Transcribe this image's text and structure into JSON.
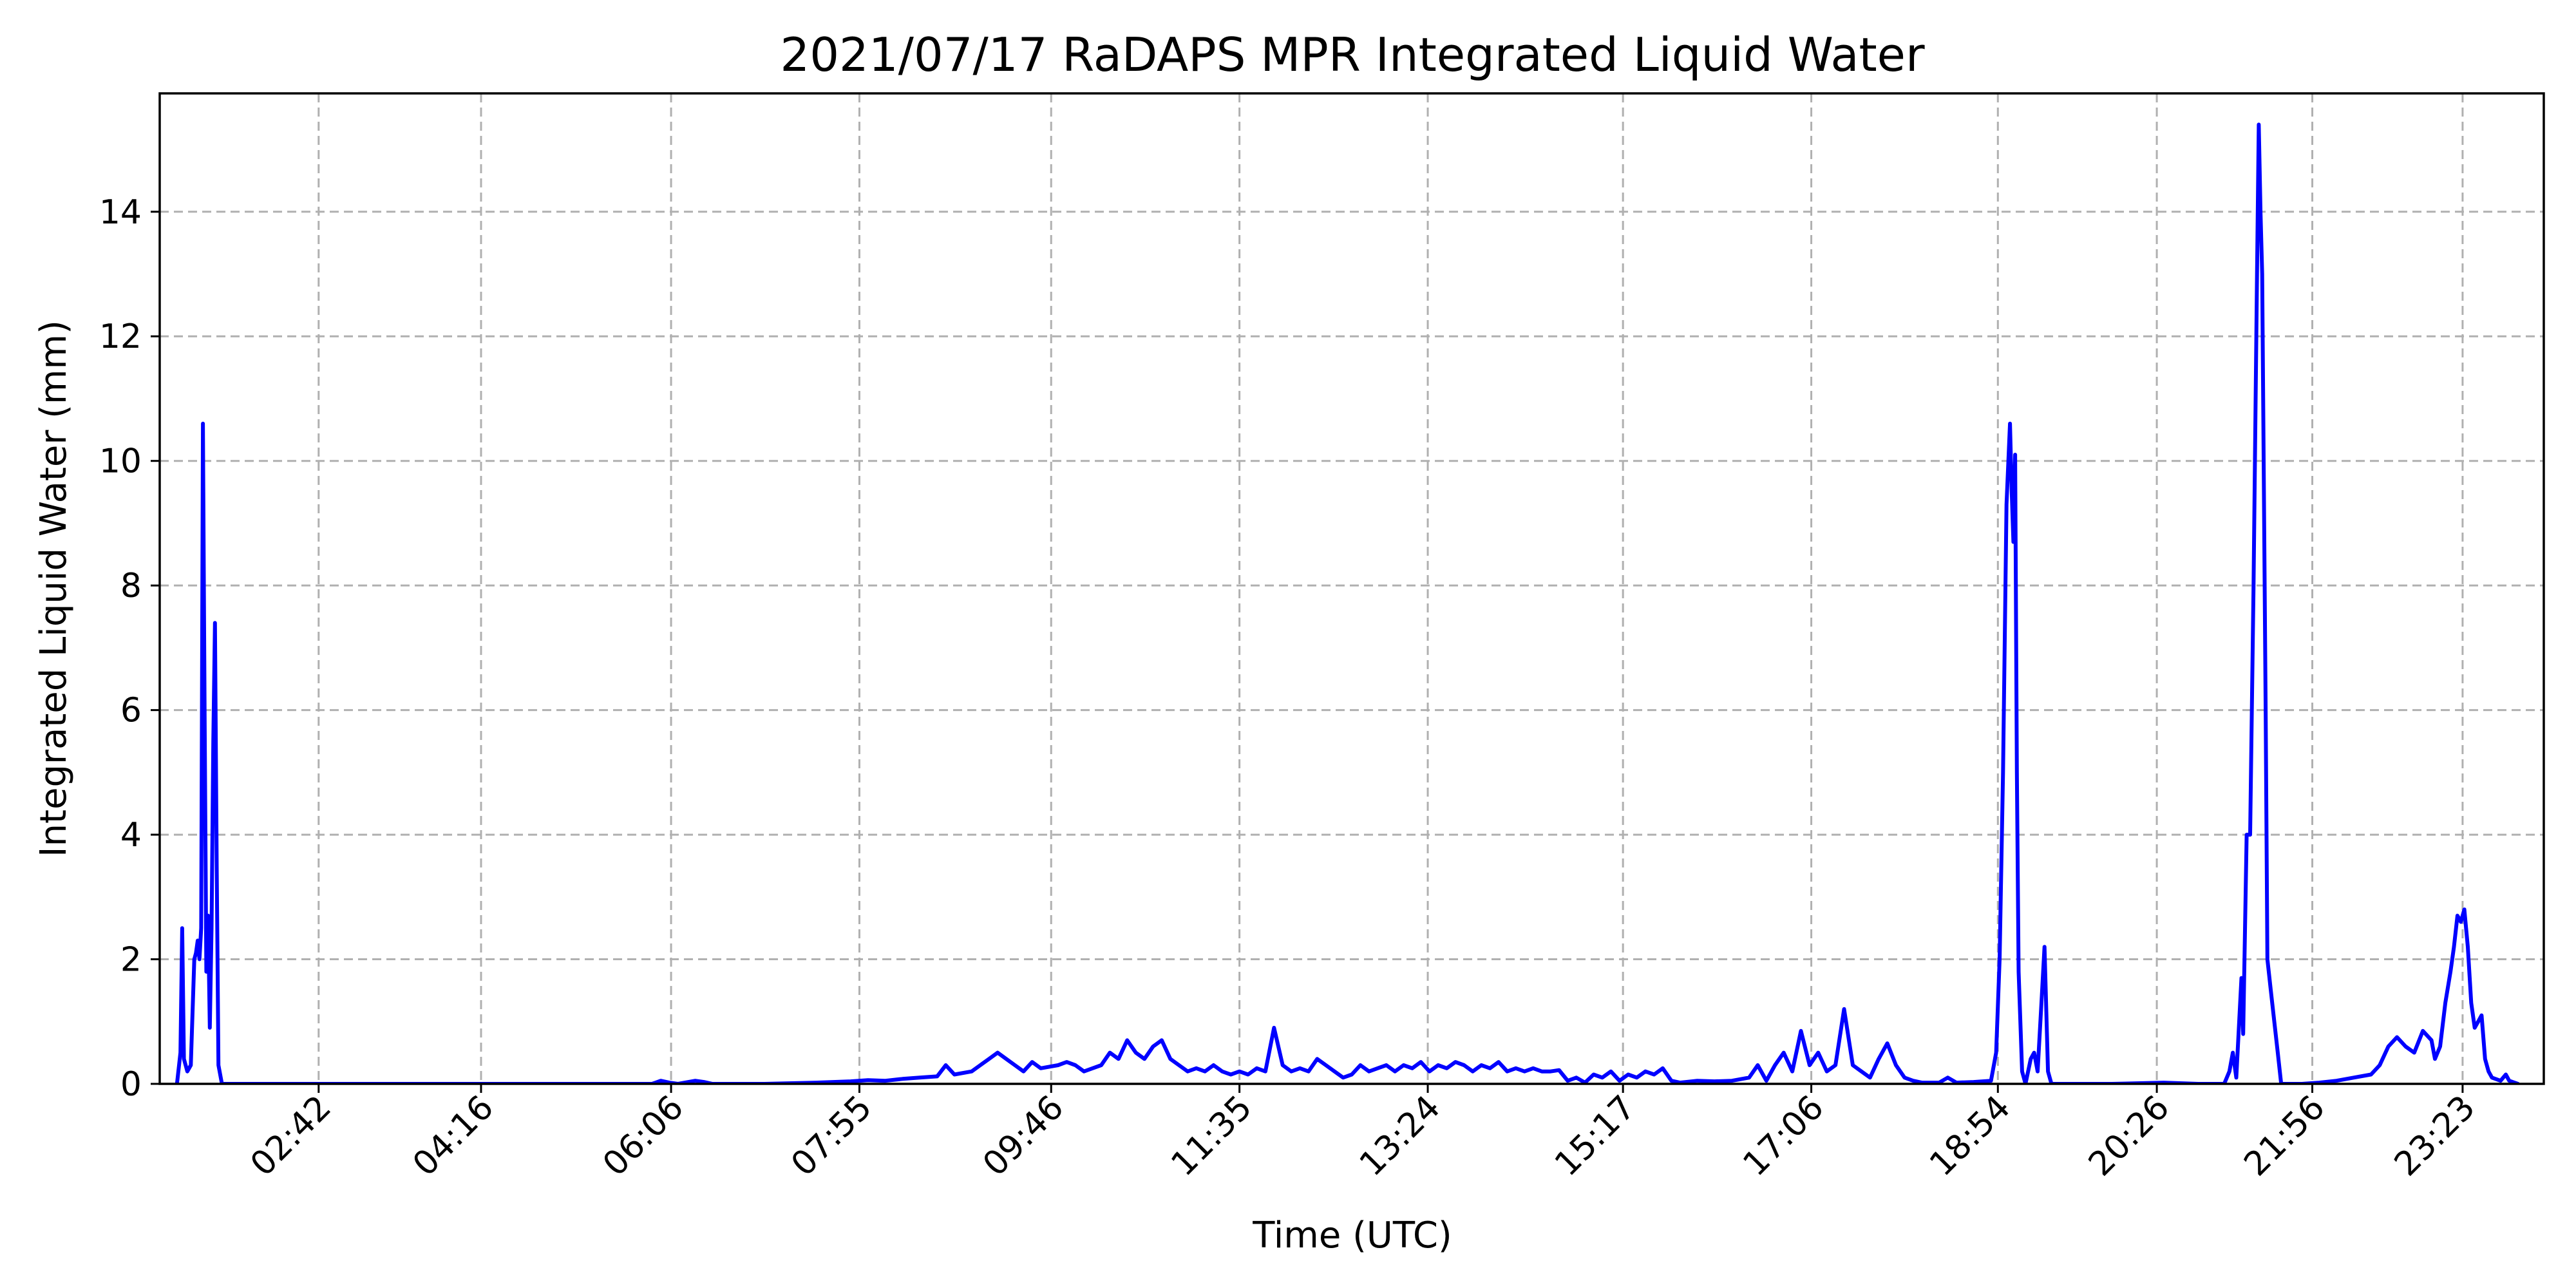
{
  "chart_data": {
    "type": "line",
    "title": "2021/07/17 RaDAPS MPR Integrated Liquid Water",
    "xlabel": "Time (UTC)",
    "ylabel": "Integrated Liquid Water (mm)",
    "x_unit": "minutes since 00:00 UTC",
    "xlim": [
      70,
      1450
    ],
    "ylim": [
      0,
      15.9
    ],
    "yticks": [
      0,
      2,
      4,
      6,
      8,
      10,
      12,
      14
    ],
    "xticks": [
      {
        "value": 162,
        "label": "02:42"
      },
      {
        "value": 256,
        "label": "04:16"
      },
      {
        "value": 366,
        "label": "06:06"
      },
      {
        "value": 475,
        "label": "07:55"
      },
      {
        "value": 586,
        "label": "09:46"
      },
      {
        "value": 695,
        "label": "11:35"
      },
      {
        "value": 804,
        "label": "13:24"
      },
      {
        "value": 917,
        "label": "15:17"
      },
      {
        "value": 1026,
        "label": "17:06"
      },
      {
        "value": 1134,
        "label": "18:54"
      },
      {
        "value": 1226,
        "label": "20:26"
      },
      {
        "value": 1316,
        "label": "21:56"
      },
      {
        "value": 1403,
        "label": "23:23"
      }
    ],
    "grid": true,
    "series": [
      {
        "color": "#0000ff",
        "points": [
          [
            80,
            0
          ],
          [
            82,
            0.5
          ],
          [
            83,
            2.5
          ],
          [
            84,
            0.4
          ],
          [
            86,
            0.2
          ],
          [
            88,
            0.3
          ],
          [
            90,
            2
          ],
          [
            91,
            2.1
          ],
          [
            92,
            2.3
          ],
          [
            93,
            2
          ],
          [
            94,
            2.5
          ],
          [
            95,
            10.6
          ],
          [
            96,
            6
          ],
          [
            97,
            1.8
          ],
          [
            98,
            2.7
          ],
          [
            99,
            0.9
          ],
          [
            100,
            2.5
          ],
          [
            101,
            5.5
          ],
          [
            102,
            7.4
          ],
          [
            103,
            3.5
          ],
          [
            104,
            0.3
          ],
          [
            106,
            0
          ],
          [
            200,
            0
          ],
          [
            340,
            0
          ],
          [
            355,
            0
          ],
          [
            360,
            0.05
          ],
          [
            365,
            0.02
          ],
          [
            370,
            0
          ],
          [
            380,
            0.05
          ],
          [
            385,
            0.03
          ],
          [
            390,
            0
          ],
          [
            420,
            0
          ],
          [
            450,
            0.02
          ],
          [
            470,
            0.04
          ],
          [
            480,
            0.06
          ],
          [
            490,
            0.05
          ],
          [
            500,
            0.08
          ],
          [
            510,
            0.1
          ],
          [
            520,
            0.12
          ],
          [
            525,
            0.3
          ],
          [
            530,
            0.15
          ],
          [
            540,
            0.2
          ],
          [
            545,
            0.3
          ],
          [
            550,
            0.4
          ],
          [
            555,
            0.5
          ],
          [
            560,
            0.4
          ],
          [
            565,
            0.3
          ],
          [
            570,
            0.2
          ],
          [
            575,
            0.35
          ],
          [
            580,
            0.25
          ],
          [
            590,
            0.3
          ],
          [
            595,
            0.35
          ],
          [
            600,
            0.3
          ],
          [
            605,
            0.2
          ],
          [
            610,
            0.25
          ],
          [
            615,
            0.3
          ],
          [
            620,
            0.5
          ],
          [
            625,
            0.4
          ],
          [
            630,
            0.7
          ],
          [
            635,
            0.5
          ],
          [
            640,
            0.4
          ],
          [
            645,
            0.6
          ],
          [
            650,
            0.7
          ],
          [
            655,
            0.4
          ],
          [
            660,
            0.3
          ],
          [
            665,
            0.2
          ],
          [
            670,
            0.25
          ],
          [
            675,
            0.2
          ],
          [
            680,
            0.3
          ],
          [
            685,
            0.2
          ],
          [
            690,
            0.15
          ],
          [
            695,
            0.2
          ],
          [
            700,
            0.15
          ],
          [
            705,
            0.25
          ],
          [
            710,
            0.2
          ],
          [
            715,
            0.9
          ],
          [
            720,
            0.3
          ],
          [
            725,
            0.2
          ],
          [
            730,
            0.25
          ],
          [
            735,
            0.2
          ],
          [
            740,
            0.4
          ],
          [
            745,
            0.3
          ],
          [
            750,
            0.2
          ],
          [
            755,
            0.1
          ],
          [
            760,
            0.15
          ],
          [
            765,
            0.3
          ],
          [
            770,
            0.2
          ],
          [
            775,
            0.25
          ],
          [
            780,
            0.3
          ],
          [
            785,
            0.2
          ],
          [
            790,
            0.3
          ],
          [
            795,
            0.25
          ],
          [
            800,
            0.35
          ],
          [
            805,
            0.2
          ],
          [
            810,
            0.3
          ],
          [
            815,
            0.25
          ],
          [
            820,
            0.35
          ],
          [
            825,
            0.3
          ],
          [
            830,
            0.2
          ],
          [
            835,
            0.3
          ],
          [
            840,
            0.25
          ],
          [
            845,
            0.35
          ],
          [
            850,
            0.2
          ],
          [
            855,
            0.25
          ],
          [
            860,
            0.2
          ],
          [
            865,
            0.25
          ],
          [
            870,
            0.2
          ],
          [
            875,
            0.2
          ],
          [
            880,
            0.22
          ],
          [
            885,
            0.05
          ],
          [
            890,
            0.1
          ],
          [
            895,
            0.02
          ],
          [
            900,
            0.15
          ],
          [
            905,
            0.1
          ],
          [
            910,
            0.2
          ],
          [
            915,
            0.05
          ],
          [
            920,
            0.15
          ],
          [
            925,
            0.1
          ],
          [
            930,
            0.2
          ],
          [
            935,
            0.15
          ],
          [
            940,
            0.25
          ],
          [
            945,
            0.05
          ],
          [
            950,
            0.02
          ],
          [
            960,
            0.05
          ],
          [
            970,
            0.04
          ],
          [
            980,
            0.05
          ],
          [
            990,
            0.1
          ],
          [
            995,
            0.3
          ],
          [
            1000,
            0.05
          ],
          [
            1005,
            0.3
          ],
          [
            1010,
            0.5
          ],
          [
            1015,
            0.2
          ],
          [
            1020,
            0.85
          ],
          [
            1025,
            0.3
          ],
          [
            1030,
            0.5
          ],
          [
            1035,
            0.2
          ],
          [
            1040,
            0.3
          ],
          [
            1045,
            1.2
          ],
          [
            1050,
            0.3
          ],
          [
            1055,
            0.2
          ],
          [
            1060,
            0.1
          ],
          [
            1065,
            0.4
          ],
          [
            1070,
            0.65
          ],
          [
            1075,
            0.3
          ],
          [
            1080,
            0.1
          ],
          [
            1085,
            0.05
          ],
          [
            1090,
            0.02
          ],
          [
            1100,
            0.02
          ],
          [
            1105,
            0.1
          ],
          [
            1110,
            0.02
          ],
          [
            1120,
            0.03
          ],
          [
            1130,
            0.05
          ],
          [
            1133,
            0.5
          ],
          [
            1135,
            2
          ],
          [
            1137,
            5
          ],
          [
            1139,
            9.3
          ],
          [
            1141,
            10.6
          ],
          [
            1142,
            9.5
          ],
          [
            1143,
            8.7
          ],
          [
            1144,
            10.1
          ],
          [
            1145,
            5
          ],
          [
            1146,
            1.8
          ],
          [
            1148,
            0.2
          ],
          [
            1150,
            0
          ],
          [
            1153,
            0.4
          ],
          [
            1155,
            0.5
          ],
          [
            1157,
            0.2
          ],
          [
            1159,
            1.2
          ],
          [
            1161,
            2.2
          ],
          [
            1163,
            0.2
          ],
          [
            1165,
            0
          ],
          [
            1200,
            0
          ],
          [
            1230,
            0.02
          ],
          [
            1250,
            0
          ],
          [
            1265,
            0
          ],
          [
            1268,
            0.2
          ],
          [
            1270,
            0.5
          ],
          [
            1272,
            0.1
          ],
          [
            1275,
            1.7
          ],
          [
            1276,
            0.8
          ],
          [
            1278,
            4
          ],
          [
            1280,
            4
          ],
          [
            1282,
            8
          ],
          [
            1284,
            13
          ],
          [
            1285,
            15.4
          ],
          [
            1286,
            14
          ],
          [
            1287,
            13
          ],
          [
            1289,
            6
          ],
          [
            1290,
            2
          ],
          [
            1292,
            1.5
          ],
          [
            1294,
            1
          ],
          [
            1296,
            0.5
          ],
          [
            1298,
            0
          ],
          [
            1310,
            0
          ],
          [
            1320,
            0.02
          ],
          [
            1330,
            0.05
          ],
          [
            1340,
            0.1
          ],
          [
            1350,
            0.15
          ],
          [
            1355,
            0.3
          ],
          [
            1360,
            0.6
          ],
          [
            1365,
            0.75
          ],
          [
            1370,
            0.6
          ],
          [
            1375,
            0.5
          ],
          [
            1380,
            0.85
          ],
          [
            1385,
            0.7
          ],
          [
            1387,
            0.4
          ],
          [
            1390,
            0.6
          ],
          [
            1393,
            1.3
          ],
          [
            1396,
            1.8
          ],
          [
            1398,
            2.2
          ],
          [
            1400,
            2.7
          ],
          [
            1402,
            2.6
          ],
          [
            1404,
            2.8
          ],
          [
            1406,
            2.2
          ],
          [
            1408,
            1.3
          ],
          [
            1410,
            0.9
          ],
          [
            1412,
            1
          ],
          [
            1414,
            1.1
          ],
          [
            1416,
            0.4
          ],
          [
            1418,
            0.2
          ],
          [
            1420,
            0.1
          ],
          [
            1425,
            0.05
          ],
          [
            1428,
            0.15
          ],
          [
            1430,
            0.05
          ],
          [
            1435,
            0
          ]
        ]
      }
    ]
  }
}
